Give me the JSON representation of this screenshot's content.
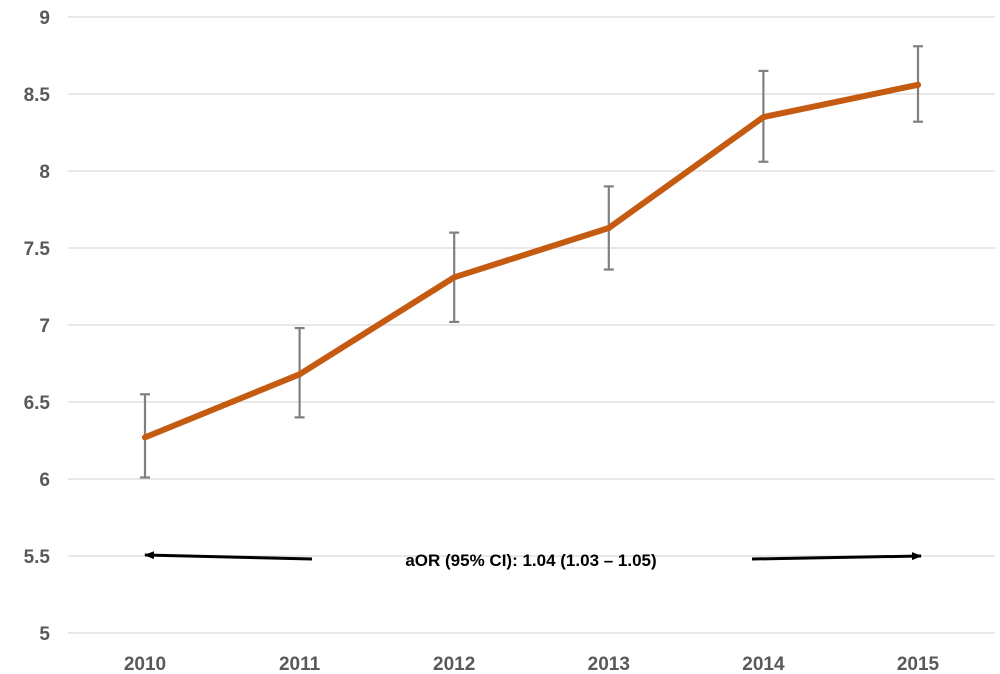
{
  "chart_data": {
    "type": "line",
    "title": "",
    "xlabel": "",
    "ylabel": "",
    "categories": [
      "2010",
      "2011",
      "2012",
      "2013",
      "2014",
      "2015"
    ],
    "series": [
      {
        "values": [
          6.27,
          6.68,
          7.31,
          7.63,
          8.35,
          8.56
        ],
        "ci_lower": [
          6.01,
          6.4,
          7.02,
          7.36,
          8.06,
          8.32
        ],
        "ci_upper": [
          6.55,
          6.98,
          7.6,
          7.9,
          8.65,
          8.81
        ],
        "color": "#C55A11"
      }
    ],
    "ylim": [
      5,
      9
    ],
    "yticks": [
      "5",
      "5.5",
      "6",
      "6.5",
      "7",
      "7.5",
      "8",
      "8.5",
      "9"
    ],
    "grid": true,
    "legend": "none",
    "error_bar_color": "#808080",
    "annotation": {
      "text": "aOR (95% CI): 1.04 (1.03 – 1.05)",
      "arrow_y": 5.5,
      "arrow_from": "2010",
      "arrow_to": "2015"
    }
  }
}
